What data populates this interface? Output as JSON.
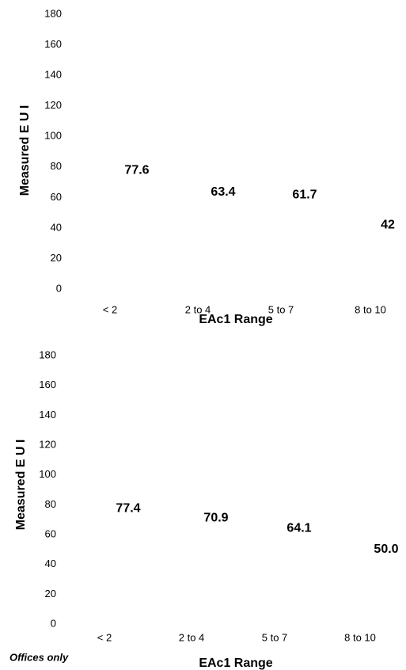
{
  "chart_data": [
    {
      "type": "bar",
      "categories": [
        "< 2",
        "2 to 4",
        "5 to 7",
        "8 to 10"
      ],
      "values": [
        77.6,
        63.4,
        61.7,
        42
      ],
      "data_labels": [
        "77.6",
        "63.4",
        "61.7",
        "42"
      ],
      "xlabel": "EAc1 Range",
      "ylabel": "Measured E U I",
      "ylim": [
        0,
        180
      ],
      "yticks": [
        0,
        20,
        40,
        60,
        80,
        100,
        120,
        140,
        160,
        180
      ],
      "grid": false,
      "bar_color": "#ffffff"
    },
    {
      "type": "bar",
      "categories": [
        "< 2",
        "2 to 4",
        "5 to 7",
        "8 to 10"
      ],
      "values": [
        77.4,
        70.9,
        64.1,
        50.0
      ],
      "data_labels": [
        "77.4",
        "70.9",
        "64.1",
        "50.0"
      ],
      "xlabel": "EAc1 Range",
      "ylabel": "Measured E U I",
      "ylim": [
        0,
        180
      ],
      "yticks": [
        0,
        20,
        40,
        60,
        80,
        100,
        120,
        140,
        160,
        180
      ],
      "grid": false,
      "bar_color": "#ffffff",
      "footnote": "Offices only"
    }
  ]
}
